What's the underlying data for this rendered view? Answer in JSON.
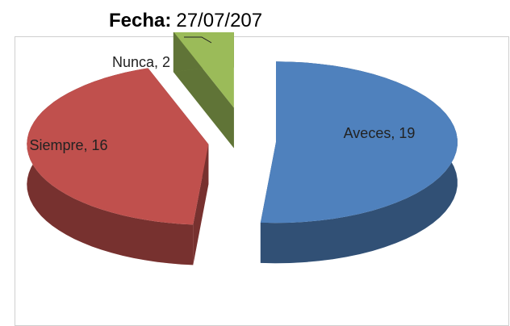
{
  "header": {
    "label": "Fecha:",
    "value": "27/07/207"
  },
  "chart_data": {
    "type": "pie",
    "categories": [
      "Aveces",
      "Siempre",
      "Nunca"
    ],
    "values": [
      19,
      16,
      2
    ],
    "value_labels": [
      "Aveces, 19",
      "Siempre, 16",
      "Nunca, 2"
    ],
    "colors": [
      "#4f81bd",
      "#c0504d",
      "#9bbb59"
    ]
  }
}
